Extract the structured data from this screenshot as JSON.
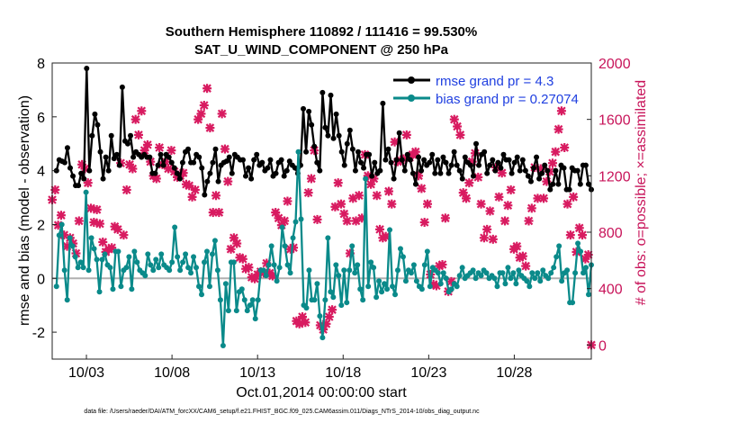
{
  "chart_data": {
    "type": "line",
    "title_line1": "Southern Hemisphere 110892 / 111416 = 99.530%",
    "title_line2": "SAT_U_WIND_COMPONENT @ 250 hPa",
    "ylabel": "rmse and bias (model - observation)",
    "ylabel_right": "# of obs: o=possible; ×=assimilated",
    "xlabel": "Oct.01,2014 00:00:00 start",
    "footnote": "data file: /Users/raeder/DAI/ATM_forcXX/CAM6_setup/f.e21.FHIST_BGC.f09_025.CAM6assim.011/Diags_NTrS_2014-10/obs_diag_output.nc",
    "x_start_day": 1,
    "x_end_day": 32.5,
    "ylim": [
      -3,
      8
    ],
    "y_ticks": [
      "-2",
      "0",
      "2",
      "4",
      "6",
      "8"
    ],
    "ylim_right": [
      -100,
      2000
    ],
    "y_ticks_right": [
      "0",
      "400",
      "800",
      "1200",
      "1600",
      "2000"
    ],
    "x_tick_days": [
      3,
      8,
      13,
      18,
      23,
      28
    ],
    "x_tick_labels": [
      "10/03",
      "10/08",
      "10/13",
      "10/18",
      "10/23",
      "10/28"
    ],
    "legend": {
      "rmse_label": "rmse grand pr = 4.3",
      "bias_label": "bias grand pr = 0.27074"
    },
    "colors": {
      "rmse": "#000000",
      "bias": "#0a8a8a",
      "obs": "#d81b60",
      "right_axis": "#c8145a",
      "legend_text": "#1f3fe0",
      "zero_line": "#b0b0b0"
    },
    "series": [
      {
        "name": "rmse",
        "values": [
          4.0,
          4.4,
          4.35,
          4.3,
          4.85,
          4.1,
          3.8,
          3.45,
          3.45,
          3.9,
          3.7,
          7.8,
          4.0,
          5.3,
          6.1,
          5.7,
          4.7,
          3.7,
          4.5,
          4.0,
          5.3,
          4.45,
          4.6,
          4.2,
          7.1,
          5.1,
          5.0,
          5.3,
          4.5,
          4.7,
          4.6,
          4.5,
          4.6,
          4.5,
          4.5,
          3.9,
          3.9,
          4.2,
          4.6,
          4.2,
          4.6,
          4.5,
          4.3,
          4.1,
          3.9,
          3.7,
          4.3,
          4.7,
          4.8,
          4.3,
          4.3,
          4.6,
          4.5,
          4.1,
          3.1,
          3.6,
          3.9,
          4.3,
          4.8,
          3.6,
          4.2,
          4.3,
          4.35,
          4.5,
          3.9,
          4.6,
          4.5,
          4.4,
          4.4,
          3.8,
          4.1,
          3.7,
          4.4,
          4.6,
          4.2,
          4.3,
          4.0,
          4.1,
          4.4,
          3.8,
          3.9,
          4.3,
          4.4,
          3.8,
          4.0,
          4.35,
          4.2,
          4.1,
          3.9,
          4.2,
          6.3,
          4.7,
          6.2,
          5.7,
          4.9,
          4.3,
          4.0,
          6.9,
          5.6,
          5.3,
          6.8,
          5.2,
          6.1,
          5.3,
          4.7,
          4.2,
          5.0,
          5.5,
          4.8,
          4.0,
          4.7,
          4.3,
          4.1,
          4.6,
          4.6,
          3.8,
          4.3,
          3.9,
          4.0,
          6.5,
          4.4,
          4.8,
          4.3,
          3.7,
          4.4,
          5.4,
          4.4,
          4.0,
          4.6,
          4.4,
          3.9,
          3.5,
          4.5,
          4.0,
          4.4,
          4.2,
          4.3,
          4.6,
          3.9,
          4.4,
          3.9,
          4.5,
          4.3,
          3.9,
          4.2,
          4.7,
          4.2,
          4.0,
          3.7,
          4.5,
          4.3,
          4.2,
          3.8,
          5.0,
          4.2,
          4.6,
          4.7,
          3.9,
          4.2,
          4.4,
          4.0,
          4.3,
          4.1,
          4.6,
          4.4,
          4.4,
          3.9,
          4.3,
          4.5,
          4.0,
          4.4,
          4.0,
          3.8,
          3.6,
          4.1,
          4.5,
          3.7,
          3.9,
          4.2,
          4.0,
          3.3,
          3.5,
          4.0,
          3.5,
          4.2,
          4.1,
          3.3,
          3.3,
          4.1,
          4.0,
          4.0,
          3.5,
          4.2,
          4.2,
          3.5,
          3.3
        ]
      },
      {
        "name": "bias",
        "values": [
          -0.3,
          1.6,
          2.0,
          0.3,
          -0.8,
          1.5,
          1.2,
          0.8,
          0.4,
          0.6,
          0.4,
          3.2,
          0.3,
          1.5,
          1.1,
          0.7,
          -0.5,
          0.7,
          0.9,
          0.5,
          0.4,
          -0.4,
          1.0,
          1.0,
          -0.3,
          0.3,
          0.4,
          0.8,
          -0.4,
          1.0,
          0.6,
          0.3,
          0.2,
          0.1,
          0.9,
          0.5,
          0.3,
          0.7,
          0.4,
          0.9,
          0.5,
          0.4,
          0.3,
          0.6,
          1.9,
          0.8,
          0.3,
          0.6,
          0.9,
          0.4,
          0.2,
          0.8,
          0.4,
          -0.3,
          -0.6,
          0.6,
          1.0,
          -0.3,
          0.9,
          1.4,
          0.3,
          -0.8,
          -2.5,
          -0.2,
          -1.2,
          0.6,
          0.6,
          -1.2,
          -0.5,
          -0.4,
          -0.8,
          -1.2,
          -1.0,
          -0.8,
          -1.5,
          -0.8,
          0.3,
          0.3,
          0.1,
          0.5,
          1.2,
          0.5,
          -0.1,
          0.4,
          1.9,
          1.2,
          0.5,
          0.2,
          1.5,
          2.1,
          4.7,
          2.2,
          -1.0,
          -1.1,
          0.3,
          -0.8,
          -0.8,
          -0.2,
          -1.4,
          -2.2,
          -0.8,
          1.5,
          -0.5,
          -0.7,
          0.5,
          0.1,
          -1.0,
          0.3,
          -0.9,
          0.3,
          1.2,
          0.2,
          0.5,
          -0.4,
          -0.8,
          3.7,
          -0.3,
          0.6,
          0.4,
          -0.7,
          -0.1,
          -0.5,
          -0.2,
          -0.4,
          1.8,
          -0.3,
          -0.6,
          0.3,
          1.1,
          0.8,
          -0.1,
          0.3,
          0.2,
          0.5,
          -0.1,
          -0.3,
          -0.4,
          0.5,
          1.0,
          -0.3,
          0.4,
          0.3,
          0.2,
          -0.2,
          0.2,
          0.0,
          -0.5,
          -0.4,
          -0.2,
          -0.3,
          0.1,
          0.4,
          0.0,
          0.1,
          0.2,
          0.3,
          0.0,
          0.2,
          0.1,
          0.3,
          0.2,
          0.0,
          0.1,
          0.0,
          -0.3,
          0.2,
          0.2,
          -0.2,
          0.4,
          0.0,
          0.2,
          -0.2,
          0.3,
          0.1,
          0.0,
          -0.1,
          -0.3,
          0.2,
          0.0,
          0.2,
          -0.1,
          0.3,
          0.1,
          0.0,
          0.2,
          0.4,
          0.8,
          1.2,
          -0.1,
          0.2,
          0.3,
          -0.9,
          -0.9,
          0.2,
          1.3,
          1.0,
          0.2,
          0.4,
          -0.6,
          0.5
        ]
      }
    ],
    "obs_assimilated": [
      1030,
      1100,
      850,
      920,
      780,
      700,
      760,
      720,
      650,
      880,
      1280,
      1250,
      1150,
      970,
      870,
      960,
      860,
      730,
      660,
      680,
      690,
      840,
      820,
      1290,
      780,
      1100,
      1280,
      1250,
      1600,
      1490,
      1660,
      1380,
      1420,
      1300,
      1200,
      1180,
      1400,
      1280,
      1300,
      1250,
      1380,
      1230,
      1190,
      1200,
      1220,
      1140,
      1130,
      1050,
      1100,
      1600,
      1640,
      1700,
      1820,
      1540,
      940,
      1060,
      940,
      1640,
      1390,
      1160,
      680,
      760,
      720,
      620,
      610,
      540,
      550,
      480,
      470,
      500,
      520,
      510,
      580,
      510,
      490,
      940,
      900,
      850,
      880,
      1020,
      680,
      690,
      170,
      150,
      200,
      160,
      1080,
      1180,
      1380,
      890,
      140,
      110,
      150,
      200,
      250,
      980,
      1150,
      1000,
      930,
      880,
      650,
      1040,
      880,
      1060,
      900,
      1350,
      1200,
      1140,
      1180,
      1060,
      820,
      760,
      770,
      1090,
      1000,
      1440,
      1300,
      1310,
      1320,
      1490,
      1330,
      1350,
      1370,
      1200,
      1110,
      870,
      1000,
      500,
      430,
      420,
      560,
      570,
      900,
      380,
      450,
      1600,
      1550,
      1490,
      1080,
      1040,
      1150,
      1300,
      1360,
      1190,
      1000,
      760,
      820,
      950,
      750,
      1260,
      1050,
      1220,
      880,
      990,
      1100,
      680,
      700,
      620,
      630,
      560,
      880,
      970,
      1260,
      1040,
      1250,
      1040,
      1160,
      1230,
      1290,
      1370,
      1530,
      1660,
      1400,
      1000,
      780,
      1050,
      660,
      830,
      780,
      610,
      640,
      0
    ]
  }
}
